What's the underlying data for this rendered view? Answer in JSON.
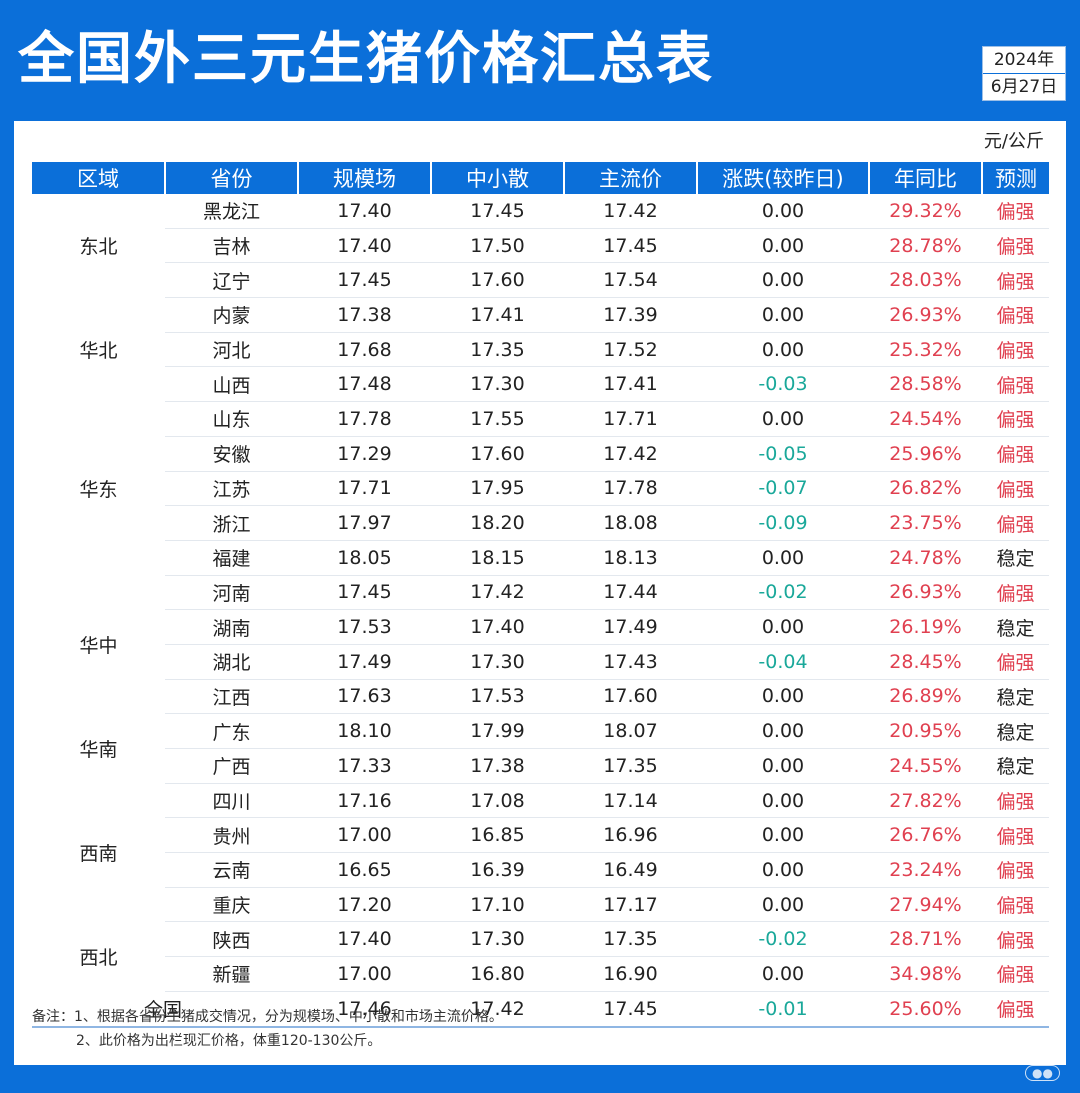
{
  "title": "全国外三元生猪价格汇总表",
  "date": {
    "year": "2024年",
    "day": "6月27日"
  },
  "unit": "元/公斤",
  "headers": [
    "区域",
    "省份",
    "规模场",
    "中小散",
    "主流价",
    "涨跌(较昨日)",
    "年同比",
    "预测"
  ],
  "colors": {
    "brand": "#0b6fd9",
    "up": "#e04050",
    "down": "#1aa89a"
  },
  "regions": [
    {
      "name": "东北",
      "rows": [
        {
          "province": "黑龙江",
          "scale": "17.40",
          "small": "17.45",
          "main": "17.42",
          "change": "0.00",
          "yoy": "29.32%",
          "forecast": "偏强"
        },
        {
          "province": "吉林",
          "scale": "17.40",
          "small": "17.50",
          "main": "17.45",
          "change": "0.00",
          "yoy": "28.78%",
          "forecast": "偏强"
        },
        {
          "province": "辽宁",
          "scale": "17.45",
          "small": "17.60",
          "main": "17.54",
          "change": "0.00",
          "yoy": "28.03%",
          "forecast": "偏强"
        }
      ]
    },
    {
      "name": "华北",
      "rows": [
        {
          "province": "内蒙",
          "scale": "17.38",
          "small": "17.41",
          "main": "17.39",
          "change": "0.00",
          "yoy": "26.93%",
          "forecast": "偏强"
        },
        {
          "province": "河北",
          "scale": "17.68",
          "small": "17.35",
          "main": "17.52",
          "change": "0.00",
          "yoy": "25.32%",
          "forecast": "偏强"
        },
        {
          "province": "山西",
          "scale": "17.48",
          "small": "17.30",
          "main": "17.41",
          "change": "-0.03",
          "yoy": "28.58%",
          "forecast": "偏强"
        }
      ]
    },
    {
      "name": "华东",
      "rows": [
        {
          "province": "山东",
          "scale": "17.78",
          "small": "17.55",
          "main": "17.71",
          "change": "0.00",
          "yoy": "24.54%",
          "forecast": "偏强"
        },
        {
          "province": "安徽",
          "scale": "17.29",
          "small": "17.60",
          "main": "17.42",
          "change": "-0.05",
          "yoy": "25.96%",
          "forecast": "偏强"
        },
        {
          "province": "江苏",
          "scale": "17.71",
          "small": "17.95",
          "main": "17.78",
          "change": "-0.07",
          "yoy": "26.82%",
          "forecast": "偏强"
        },
        {
          "province": "浙江",
          "scale": "17.97",
          "small": "18.20",
          "main": "18.08",
          "change": "-0.09",
          "yoy": "23.75%",
          "forecast": "偏强"
        },
        {
          "province": "福建",
          "scale": "18.05",
          "small": "18.15",
          "main": "18.13",
          "change": "0.00",
          "yoy": "24.78%",
          "forecast": "稳定"
        }
      ]
    },
    {
      "name": "华中",
      "rows": [
        {
          "province": "河南",
          "scale": "17.45",
          "small": "17.42",
          "main": "17.44",
          "change": "-0.02",
          "yoy": "26.93%",
          "forecast": "偏强"
        },
        {
          "province": "湖南",
          "scale": "17.53",
          "small": "17.40",
          "main": "17.49",
          "change": "0.00",
          "yoy": "26.19%",
          "forecast": "稳定"
        },
        {
          "province": "湖北",
          "scale": "17.49",
          "small": "17.30",
          "main": "17.43",
          "change": "-0.04",
          "yoy": "28.45%",
          "forecast": "偏强"
        },
        {
          "province": "江西",
          "scale": "17.63",
          "small": "17.53",
          "main": "17.60",
          "change": "0.00",
          "yoy": "26.89%",
          "forecast": "稳定"
        }
      ]
    },
    {
      "name": "华南",
      "rows": [
        {
          "province": "广东",
          "scale": "18.10",
          "small": "17.99",
          "main": "18.07",
          "change": "0.00",
          "yoy": "20.95%",
          "forecast": "稳定"
        },
        {
          "province": "广西",
          "scale": "17.33",
          "small": "17.38",
          "main": "17.35",
          "change": "0.00",
          "yoy": "24.55%",
          "forecast": "稳定"
        }
      ]
    },
    {
      "name": "西南",
      "rows": [
        {
          "province": "四川",
          "scale": "17.16",
          "small": "17.08",
          "main": "17.14",
          "change": "0.00",
          "yoy": "27.82%",
          "forecast": "偏强"
        },
        {
          "province": "贵州",
          "scale": "17.00",
          "small": "16.85",
          "main": "16.96",
          "change": "0.00",
          "yoy": "26.76%",
          "forecast": "偏强"
        },
        {
          "province": "云南",
          "scale": "16.65",
          "small": "16.39",
          "main": "16.49",
          "change": "0.00",
          "yoy": "23.24%",
          "forecast": "偏强"
        },
        {
          "province": "重庆",
          "scale": "17.20",
          "small": "17.10",
          "main": "17.17",
          "change": "0.00",
          "yoy": "27.94%",
          "forecast": "偏强"
        }
      ]
    },
    {
      "name": "西北",
      "rows": [
        {
          "province": "陕西",
          "scale": "17.40",
          "small": "17.30",
          "main": "17.35",
          "change": "-0.02",
          "yoy": "28.71%",
          "forecast": "偏强"
        },
        {
          "province": "新疆",
          "scale": "17.00",
          "small": "16.80",
          "main": "16.90",
          "change": "0.00",
          "yoy": "34.98%",
          "forecast": "偏强"
        }
      ]
    }
  ],
  "total": {
    "label": "全国",
    "scale": "17.46",
    "small": "17.42",
    "main": "17.45",
    "change": "-0.01",
    "yoy": "25.60%",
    "forecast": "偏强"
  },
  "notes": [
    "备注：1、根据各省份生猪成交情况，分为规模场、中小散和市场主流价格。",
    "2、此价格为出栏现汇价格，体重120-130公斤。"
  ]
}
